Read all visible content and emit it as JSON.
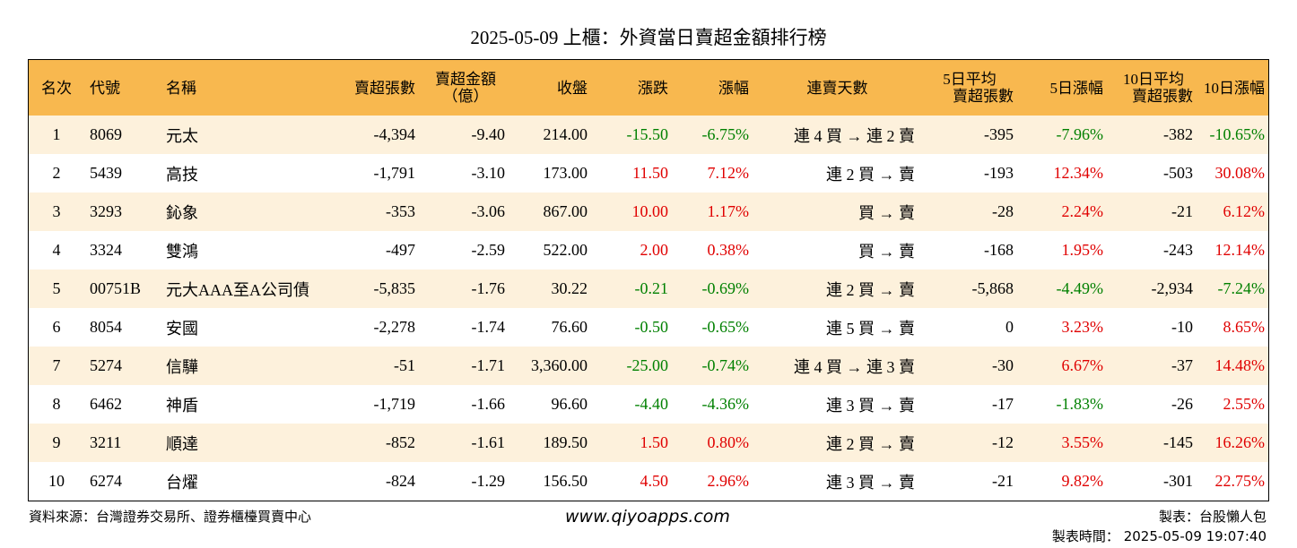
{
  "title": "2025-05-09 上櫃：外資當日賣超金額排行榜",
  "headers": {
    "rank": "名次",
    "code": "代號",
    "name": "名稱",
    "sell_shares": "賣超張數",
    "sell_amount_l1": "賣超金額",
    "sell_amount_l2": "（億）",
    "close": "收盤",
    "change": "漲跌",
    "change_pct": "漲幅",
    "streak": "連賣天數",
    "avg5_l1": "5日平均",
    "avg5_l2": "賣超張數",
    "pct5": "5日漲幅",
    "avg10_l1": "10日平均",
    "avg10_l2": "賣超張數",
    "pct10": "10日漲幅"
  },
  "rows": [
    {
      "rank": "1",
      "code": "8069",
      "name": "元太",
      "shares": "-4,394",
      "amount": "-9.40",
      "close": "214.00",
      "change": "-15.50",
      "pct": "-6.75%",
      "streak": "連 4 買 → 連 2 賣",
      "avg5": "-395",
      "pct5": "-7.96%",
      "avg10": "-382",
      "pct10": "-10.65%"
    },
    {
      "rank": "2",
      "code": "5439",
      "name": "高技",
      "shares": "-1,791",
      "amount": "-3.10",
      "close": "173.00",
      "change": "11.50",
      "pct": "7.12%",
      "streak": "連 2 買 → 賣",
      "avg5": "-193",
      "pct5": "12.34%",
      "avg10": "-503",
      "pct10": "30.08%"
    },
    {
      "rank": "3",
      "code": "3293",
      "name": "鈊象",
      "shares": "-353",
      "amount": "-3.06",
      "close": "867.00",
      "change": "10.00",
      "pct": "1.17%",
      "streak": "買 → 賣",
      "avg5": "-28",
      "pct5": "2.24%",
      "avg10": "-21",
      "pct10": "6.12%"
    },
    {
      "rank": "4",
      "code": "3324",
      "name": "雙鴻",
      "shares": "-497",
      "amount": "-2.59",
      "close": "522.00",
      "change": "2.00",
      "pct": "0.38%",
      "streak": "買 → 賣",
      "avg5": "-168",
      "pct5": "1.95%",
      "avg10": "-243",
      "pct10": "12.14%"
    },
    {
      "rank": "5",
      "code": "00751B",
      "name": "元大AAA至A公司債",
      "shares": "-5,835",
      "amount": "-1.76",
      "close": "30.22",
      "change": "-0.21",
      "pct": "-0.69%",
      "streak": "連 2 買 → 賣",
      "avg5": "-5,868",
      "pct5": "-4.49%",
      "avg10": "-2,934",
      "pct10": "-7.24%"
    },
    {
      "rank": "6",
      "code": "8054",
      "name": "安國",
      "shares": "-2,278",
      "amount": "-1.74",
      "close": "76.60",
      "change": "-0.50",
      "pct": "-0.65%",
      "streak": "連 5 買 → 賣",
      "avg5": "0",
      "pct5": "3.23%",
      "avg10": "-10",
      "pct10": "8.65%"
    },
    {
      "rank": "7",
      "code": "5274",
      "name": "信驊",
      "shares": "-51",
      "amount": "-1.71",
      "close": "3,360.00",
      "change": "-25.00",
      "pct": "-0.74%",
      "streak": "連 4 買 → 連 3 賣",
      "avg5": "-30",
      "pct5": "6.67%",
      "avg10": "-37",
      "pct10": "14.48%"
    },
    {
      "rank": "8",
      "code": "6462",
      "name": "神盾",
      "shares": "-1,719",
      "amount": "-1.66",
      "close": "96.60",
      "change": "-4.40",
      "pct": "-4.36%",
      "streak": "連 3 買 → 賣",
      "avg5": "-17",
      "pct5": "-1.83%",
      "avg10": "-26",
      "pct10": "2.55%"
    },
    {
      "rank": "9",
      "code": "3211",
      "name": "順達",
      "shares": "-852",
      "amount": "-1.61",
      "close": "189.50",
      "change": "1.50",
      "pct": "0.80%",
      "streak": "連 2 買 → 賣",
      "avg5": "-12",
      "pct5": "3.55%",
      "avg10": "-145",
      "pct10": "16.26%"
    },
    {
      "rank": "10",
      "code": "6274",
      "name": "台燿",
      "shares": "-824",
      "amount": "-1.29",
      "close": "156.50",
      "change": "4.50",
      "pct": "2.96%",
      "streak": "連 3 買 → 賣",
      "avg5": "-21",
      "pct5": "9.82%",
      "avg10": "-301",
      "pct10": "22.75%"
    }
  ],
  "colors": {
    "header_bg": "#f8b84f",
    "row_alt_bg": "#fdf1dc",
    "up": "#e00000",
    "down": "#008000"
  },
  "footer": {
    "source": "資料來源：台灣證券交易所、證券櫃檯買賣中心",
    "website": "www.qiyoapps.com",
    "maker": "製表：台股懶人包",
    "made_time": "製表時間： 2025-05-09 19:07:40"
  }
}
